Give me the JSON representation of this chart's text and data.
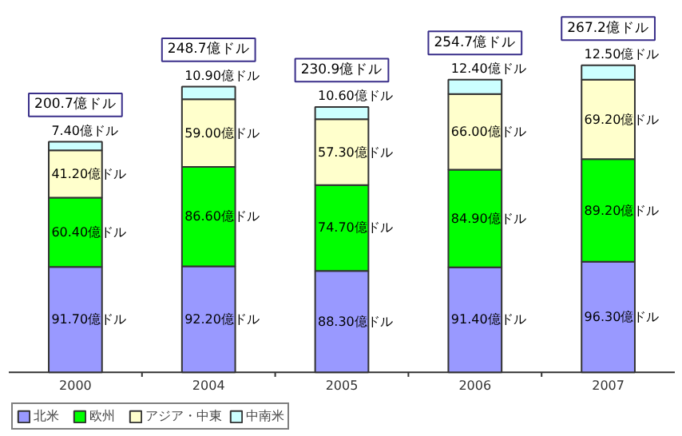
{
  "chart_data": {
    "type": "bar",
    "stacked": true,
    "categories": [
      "2000",
      "2004",
      "2005",
      "2006",
      "2007"
    ],
    "series": [
      {
        "name": "北米",
        "color": "#9999ff",
        "values": [
          91.7,
          92.2,
          88.3,
          91.4,
          96.3
        ],
        "value_labels": [
          "91.70億ドル",
          "92.20億ドル",
          "88.30億ドル",
          "91.40億ドル",
          "96.30億ドル"
        ]
      },
      {
        "name": "欧州",
        "color": "#00ff00",
        "values": [
          60.4,
          86.6,
          74.7,
          84.9,
          89.2
        ],
        "value_labels": [
          "60.40億ドル",
          "86.60億ドル",
          "74.70億ドル",
          "84.90億ドル",
          "89.20億ドル"
        ]
      },
      {
        "name": "アジア・中東",
        "color": "#ffffcc",
        "values": [
          41.2,
          59.0,
          57.3,
          66.0,
          69.2
        ],
        "value_labels": [
          "41.20億ドル",
          "59.00億ドル",
          "57.30億ドル",
          "66.00億ドル",
          "69.20億ドル"
        ]
      },
      {
        "name": "中南米",
        "color": "#ccffff",
        "values": [
          7.4,
          10.9,
          10.6,
          12.4,
          12.5
        ],
        "value_labels": [
          "7.40億ドル",
          "10.90億ドル",
          "10.60億ドル",
          "12.40億ドル",
          "12.50億ドル"
        ]
      }
    ],
    "totals": [
      "200.7億ドル",
      "248.7億ドル",
      "230.9億ドル",
      "254.7億ドル",
      "267.2億ドル"
    ],
    "legend": "bottom"
  }
}
